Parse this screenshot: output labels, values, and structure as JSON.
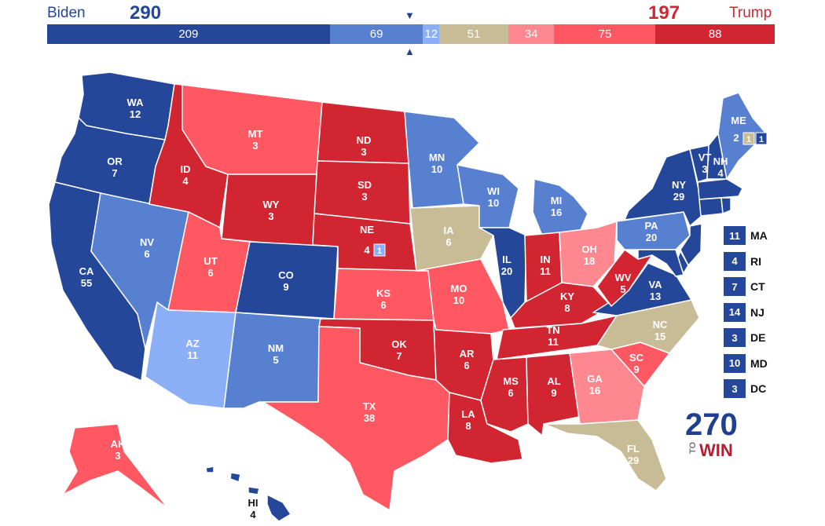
{
  "header": {
    "dem_name": "Biden",
    "dem_total": "290",
    "rep_name": "Trump",
    "rep_total": "197",
    "segments": [
      {
        "label": "209",
        "value": 209,
        "color": "#24479a"
      },
      {
        "label": "69",
        "value": 69,
        "color": "#5880d1"
      },
      {
        "label": "12",
        "value": 12,
        "color": "#8aaff7"
      },
      {
        "label": "51",
        "value": 51,
        "color": "#c8bc97"
      },
      {
        "label": "34",
        "value": 34,
        "color": "#ff8890"
      },
      {
        "label": "75",
        "value": 75,
        "color": "#ff5863"
      },
      {
        "label": "88",
        "value": 88,
        "color": "#d22532"
      }
    ],
    "marker_up": "▼",
    "marker_down": "▲"
  },
  "colors": {
    "safe_d": "#24479a",
    "likely_d": "#5880d1",
    "lean_d": "#8aaff7",
    "tossup": "#c8bc97",
    "lean_r": "#ff8890",
    "likely_r": "#ff5863",
    "safe_r": "#d22532"
  },
  "states": [
    {
      "abbr": "WA",
      "ev": "12",
      "rating": "safe_d"
    },
    {
      "abbr": "OR",
      "ev": "7",
      "rating": "safe_d"
    },
    {
      "abbr": "CA",
      "ev": "55",
      "rating": "safe_d"
    },
    {
      "abbr": "NV",
      "ev": "6",
      "rating": "likely_d"
    },
    {
      "abbr": "ID",
      "ev": "4",
      "rating": "safe_r"
    },
    {
      "abbr": "MT",
      "ev": "3",
      "rating": "likely_r"
    },
    {
      "abbr": "WY",
      "ev": "3",
      "rating": "safe_r"
    },
    {
      "abbr": "UT",
      "ev": "6",
      "rating": "likely_r"
    },
    {
      "abbr": "AZ",
      "ev": "11",
      "rating": "lean_d"
    },
    {
      "abbr": "CO",
      "ev": "9",
      "rating": "safe_d"
    },
    {
      "abbr": "NM",
      "ev": "5",
      "rating": "likely_d"
    },
    {
      "abbr": "ND",
      "ev": "3",
      "rating": "safe_r"
    },
    {
      "abbr": "SD",
      "ev": "3",
      "rating": "safe_r"
    },
    {
      "abbr": "NE",
      "ev": "4",
      "rating": "safe_r"
    },
    {
      "abbr": "KS",
      "ev": "6",
      "rating": "likely_r"
    },
    {
      "abbr": "OK",
      "ev": "7",
      "rating": "safe_r"
    },
    {
      "abbr": "TX",
      "ev": "38",
      "rating": "likely_r"
    },
    {
      "abbr": "MN",
      "ev": "10",
      "rating": "likely_d"
    },
    {
      "abbr": "IA",
      "ev": "6",
      "rating": "tossup"
    },
    {
      "abbr": "MO",
      "ev": "10",
      "rating": "likely_r"
    },
    {
      "abbr": "AR",
      "ev": "6",
      "rating": "safe_r"
    },
    {
      "abbr": "LA",
      "ev": "8",
      "rating": "safe_r"
    },
    {
      "abbr": "WI",
      "ev": "10",
      "rating": "likely_d"
    },
    {
      "abbr": "IL",
      "ev": "20",
      "rating": "safe_d"
    },
    {
      "abbr": "MI",
      "ev": "16",
      "rating": "likely_d"
    },
    {
      "abbr": "IN",
      "ev": "11",
      "rating": "safe_r"
    },
    {
      "abbr": "OH",
      "ev": "18",
      "rating": "lean_r"
    },
    {
      "abbr": "KY",
      "ev": "8",
      "rating": "safe_r"
    },
    {
      "abbr": "TN",
      "ev": "11",
      "rating": "safe_r"
    },
    {
      "abbr": "MS",
      "ev": "6",
      "rating": "safe_r"
    },
    {
      "abbr": "AL",
      "ev": "9",
      "rating": "safe_r"
    },
    {
      "abbr": "GA",
      "ev": "16",
      "rating": "lean_r"
    },
    {
      "abbr": "FL",
      "ev": "29",
      "rating": "tossup"
    },
    {
      "abbr": "SC",
      "ev": "9",
      "rating": "likely_r"
    },
    {
      "abbr": "NC",
      "ev": "15",
      "rating": "tossup"
    },
    {
      "abbr": "VA",
      "ev": "13",
      "rating": "safe_d"
    },
    {
      "abbr": "WV",
      "ev": "5",
      "rating": "safe_r"
    },
    {
      "abbr": "PA",
      "ev": "20",
      "rating": "likely_d"
    },
    {
      "abbr": "NY",
      "ev": "29",
      "rating": "safe_d"
    },
    {
      "abbr": "VT",
      "ev": "3",
      "rating": "safe_d"
    },
    {
      "abbr": "NH",
      "ev": "4",
      "rating": "safe_d"
    },
    {
      "abbr": "ME",
      "ev": "2",
      "rating": "likely_d"
    },
    {
      "abbr": "AK",
      "ev": "3",
      "rating": "likely_r"
    },
    {
      "abbr": "HI",
      "ev": "4",
      "rating": "safe_d"
    }
  ],
  "district_boxes": {
    "me_cd2": {
      "label": "1",
      "rating": "tossup"
    },
    "me_cd1": {
      "label": "1",
      "rating": "safe_d"
    },
    "ne_cd2": {
      "label": "1",
      "rating": "lean_d"
    }
  },
  "small_states": [
    {
      "abbr": "MA",
      "ev": "11",
      "rating": "safe_d"
    },
    {
      "abbr": "RI",
      "ev": "4",
      "rating": "safe_d"
    },
    {
      "abbr": "CT",
      "ev": "7",
      "rating": "safe_d"
    },
    {
      "abbr": "NJ",
      "ev": "14",
      "rating": "safe_d"
    },
    {
      "abbr": "DE",
      "ev": "3",
      "rating": "safe_d"
    },
    {
      "abbr": "MD",
      "ev": "10",
      "rating": "safe_d"
    },
    {
      "abbr": "DC",
      "ev": "3",
      "rating": "safe_d"
    }
  ],
  "logo": {
    "top": "270",
    "side": "TO",
    "bottom": "WIN"
  }
}
